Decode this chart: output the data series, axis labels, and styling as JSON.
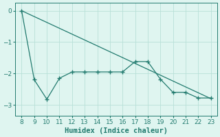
{
  "x": [
    8,
    9,
    10,
    11,
    12,
    13,
    14,
    15,
    16,
    17,
    18,
    19,
    20,
    21,
    22,
    23
  ],
  "y_data": [
    0.0,
    -2.2,
    -2.82,
    -2.15,
    -1.95,
    -1.95,
    -1.95,
    -1.95,
    -1.95,
    -1.62,
    -1.62,
    -2.18,
    -2.6,
    -2.6,
    -2.78,
    -2.78
  ],
  "y_trend": [
    0.0,
    -0.187,
    -0.373,
    -0.56,
    -0.747,
    -0.933,
    -1.12,
    -1.307,
    -1.493,
    -1.68,
    -1.867,
    -2.053,
    -2.24,
    -2.427,
    -2.613,
    -2.8
  ],
  "color": "#217a6e",
  "bg_color": "#dff5f0",
  "grid_color": "#b8e0d8",
  "xlabel": "Humidex (Indice chaleur)",
  "xlim": [
    7.5,
    23.5
  ],
  "ylim": [
    -3.35,
    0.25
  ],
  "yticks": [
    0,
    -1,
    -2,
    -3
  ],
  "xticks": [
    8,
    9,
    10,
    11,
    12,
    13,
    14,
    15,
    16,
    17,
    18,
    19,
    20,
    21,
    22,
    23
  ]
}
